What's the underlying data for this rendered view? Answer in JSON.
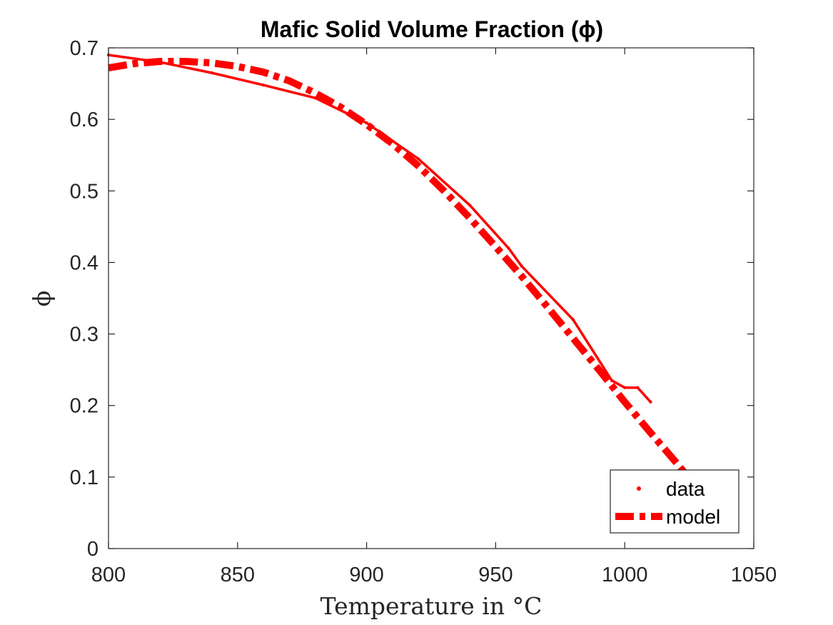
{
  "chart_data": {
    "type": "line",
    "title": "Mafic Solid Volume Fraction (ϕ)",
    "xlabel": "Temperature in °C",
    "ylabel": "ϕ",
    "xlim": [
      800,
      1050
    ],
    "ylim": [
      0,
      0.7
    ],
    "xticks": [
      800,
      850,
      900,
      950,
      1000,
      1050
    ],
    "yticks": [
      0,
      0.1,
      0.2,
      0.3,
      0.4,
      0.5,
      0.6,
      0.7
    ],
    "xtick_labels": [
      "800",
      "850",
      "900",
      "950",
      "1000",
      "1050"
    ],
    "ytick_labels": [
      "0",
      "0.1",
      "0.2",
      "0.3",
      "0.4",
      "0.5",
      "0.6",
      "0.7"
    ],
    "grid": false,
    "legend_position": "bottom-right",
    "colors": {
      "series": "#ff0000",
      "axis": "#262626",
      "background": "#ffffff"
    },
    "series": [
      {
        "name": "data",
        "style": "dot-marker-line",
        "x": [
          800,
          820,
          840,
          860,
          880,
          900,
          920,
          940,
          955,
          960,
          980,
          995,
          1000,
          1005,
          1010
        ],
        "y": [
          0.69,
          0.68,
          0.665,
          0.648,
          0.63,
          0.595,
          0.545,
          0.48,
          0.42,
          0.395,
          0.32,
          0.235,
          0.225,
          0.225,
          0.205
        ]
      },
      {
        "name": "model",
        "style": "dashed-thick",
        "x": [
          800,
          810,
          820,
          830,
          840,
          850,
          860,
          870,
          880,
          890,
          900,
          910,
          920,
          930,
          940,
          950,
          960,
          970,
          980,
          990,
          1000,
          1010,
          1020,
          1025
        ],
        "y": [
          0.672,
          0.678,
          0.681,
          0.681,
          0.679,
          0.674,
          0.666,
          0.654,
          0.637,
          0.617,
          0.593,
          0.566,
          0.535,
          0.5,
          0.462,
          0.422,
          0.381,
          0.338,
          0.294,
          0.25,
          0.205,
          0.162,
          0.12,
          0.098
        ]
      }
    ],
    "legend": [
      "data",
      "model"
    ]
  }
}
